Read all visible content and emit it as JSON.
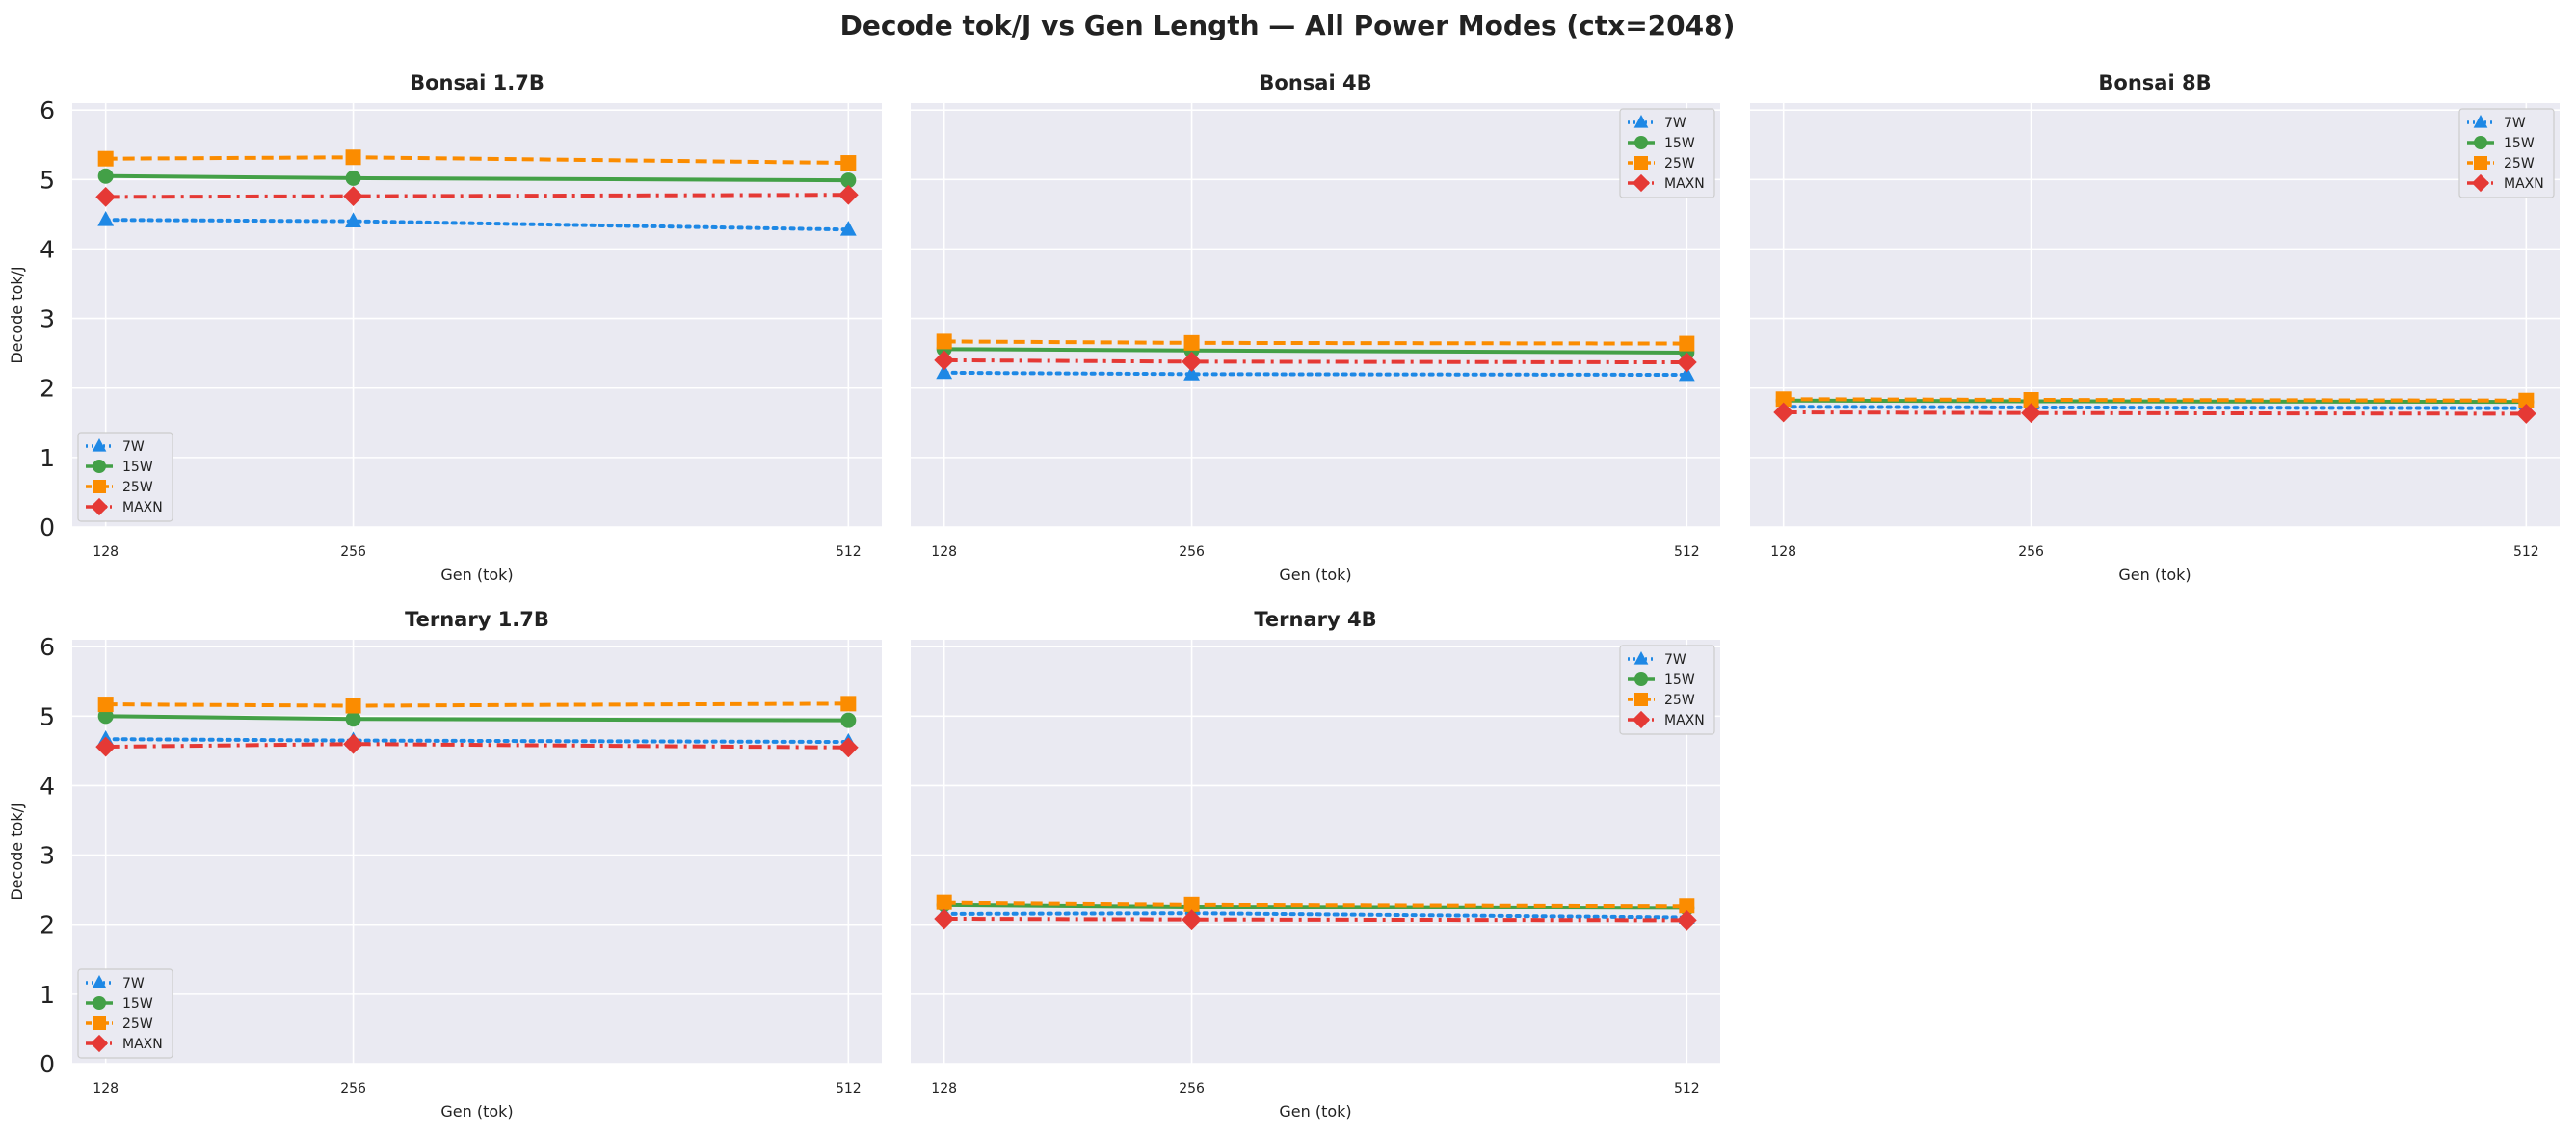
{
  "figure": {
    "title": "Decode tok/J vs Gen Length — All Power Modes (ctx=2048)"
  },
  "series_styles": [
    {
      "name": "7W",
      "color": "#1e88e5",
      "marker": "triangle",
      "dash": "dotted"
    },
    {
      "name": "15W",
      "color": "#43a047",
      "marker": "circle",
      "dash": "solid"
    },
    {
      "name": "25W",
      "color": "#fb8c00",
      "marker": "square",
      "dash": "dashed"
    },
    {
      "name": "MAXN",
      "color": "#e53935",
      "marker": "diamond",
      "dash": "dashdot"
    }
  ],
  "chart_data": [
    {
      "type": "line",
      "title": "Bonsai 1.7B",
      "xlabel": "Gen (tok)",
      "ylabel": "Decode tok/J",
      "x": [
        128,
        256,
        512
      ],
      "xticks": [
        "128",
        "256",
        "512"
      ],
      "yticks": [
        "0",
        "1",
        "2",
        "3",
        "4",
        "5",
        "6"
      ],
      "ylim": [
        0,
        6.1
      ],
      "legend": "lower-left",
      "series": [
        {
          "name": "7W",
          "values": [
            4.42,
            4.4,
            4.28
          ]
        },
        {
          "name": "15W",
          "values": [
            5.05,
            5.02,
            4.99
          ]
        },
        {
          "name": "25W",
          "values": [
            5.3,
            5.32,
            5.24
          ]
        },
        {
          "name": "MAXN",
          "values": [
            4.75,
            4.76,
            4.78
          ]
        }
      ]
    },
    {
      "type": "line",
      "title": "Bonsai 4B",
      "xlabel": "Gen (tok)",
      "ylabel": "",
      "x": [
        128,
        256,
        512
      ],
      "xticks": [
        "128",
        "256",
        "512"
      ],
      "yticks": [],
      "ylim": [
        0,
        6.1
      ],
      "legend": "upper-right",
      "series": [
        {
          "name": "7W",
          "values": [
            2.22,
            2.2,
            2.19
          ]
        },
        {
          "name": "15W",
          "values": [
            2.56,
            2.54,
            2.51
          ]
        },
        {
          "name": "25W",
          "values": [
            2.67,
            2.65,
            2.64
          ]
        },
        {
          "name": "MAXN",
          "values": [
            2.4,
            2.38,
            2.37
          ]
        }
      ]
    },
    {
      "type": "line",
      "title": "Bonsai 8B",
      "xlabel": "Gen (tok)",
      "ylabel": "",
      "x": [
        128,
        256,
        512
      ],
      "xticks": [
        "128",
        "256",
        "512"
      ],
      "yticks": [],
      "ylim": [
        0,
        6.1
      ],
      "legend": "upper-right",
      "series": [
        {
          "name": "7W",
          "values": [
            1.73,
            1.72,
            1.71
          ]
        },
        {
          "name": "15W",
          "values": [
            1.82,
            1.81,
            1.8
          ]
        },
        {
          "name": "25W",
          "values": [
            1.84,
            1.83,
            1.82
          ]
        },
        {
          "name": "MAXN",
          "values": [
            1.65,
            1.64,
            1.63
          ]
        }
      ]
    },
    {
      "type": "line",
      "title": "Ternary 1.7B",
      "xlabel": "Gen (tok)",
      "ylabel": "Decode tok/J",
      "x": [
        128,
        256,
        512
      ],
      "xticks": [
        "128",
        "256",
        "512"
      ],
      "yticks": [
        "0",
        "1",
        "2",
        "3",
        "4",
        "5",
        "6"
      ],
      "ylim": [
        0,
        6.1
      ],
      "legend": "lower-left",
      "series": [
        {
          "name": "7W",
          "values": [
            4.67,
            4.65,
            4.63
          ]
        },
        {
          "name": "15W",
          "values": [
            5.0,
            4.96,
            4.94
          ]
        },
        {
          "name": "25W",
          "values": [
            5.17,
            5.15,
            5.18
          ]
        },
        {
          "name": "MAXN",
          "values": [
            4.56,
            4.6,
            4.55
          ]
        }
      ]
    },
    {
      "type": "line",
      "title": "Ternary 4B",
      "xlabel": "Gen (tok)",
      "ylabel": "",
      "x": [
        128,
        256,
        512
      ],
      "xticks": [
        "128",
        "256",
        "512"
      ],
      "yticks": [],
      "ylim": [
        0,
        6.1
      ],
      "legend": "upper-right",
      "series": [
        {
          "name": "7W",
          "values": [
            2.15,
            2.16,
            2.1
          ]
        },
        {
          "name": "15W",
          "values": [
            2.29,
            2.26,
            2.24
          ]
        },
        {
          "name": "25W",
          "values": [
            2.32,
            2.29,
            2.27
          ]
        },
        {
          "name": "MAXN",
          "values": [
            2.08,
            2.07,
            2.06
          ]
        }
      ]
    }
  ]
}
